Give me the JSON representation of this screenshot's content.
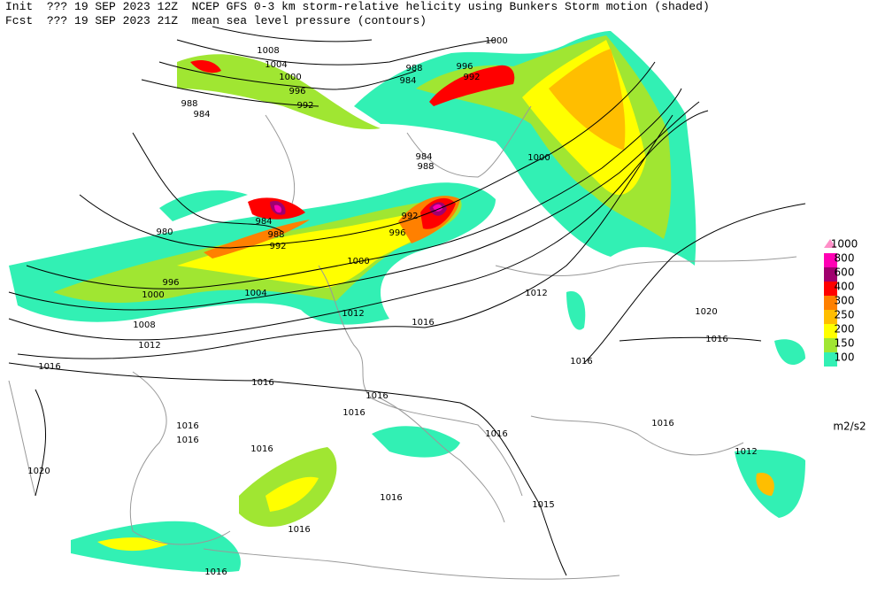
{
  "header": {
    "init_label": "Init",
    "init_time": "??? 19 SEP 2023 12Z",
    "title": "NCEP GFS 0-3 km storm-relative helicity using Bunkers Storm motion (shaded)",
    "fcst_label": "Fcst",
    "fcst_time": "??? 19 SEP 2023 21Z",
    "subtitle": "mean sea level pressure (contours)"
  },
  "legend": {
    "levels": [
      {
        "label": "1000",
        "color": "#ff8fc8"
      },
      {
        "label": "800",
        "color": "#ff00b4"
      },
      {
        "label": "600",
        "color": "#a0006e"
      },
      {
        "label": "400",
        "color": "#ff0000"
      },
      {
        "label": "300",
        "color": "#ff8000"
      },
      {
        "label": "250",
        "color": "#ffbe00"
      },
      {
        "label": "200",
        "color": "#ffff00"
      },
      {
        "label": "150",
        "color": "#a0e632"
      },
      {
        "label": "100",
        "color": "#32f0b4"
      }
    ],
    "unit": "m2/s2"
  },
  "isobar_labels": [
    "1008",
    "1004",
    "1000",
    "996",
    "992",
    "988",
    "984",
    "980",
    "984",
    "988",
    "992",
    "1000",
    "996",
    "1000",
    "1004",
    "1008",
    "1012",
    "1016",
    "1016",
    "1016",
    "1016",
    "1016",
    "1016",
    "1016",
    "1020",
    "1016",
    "1016",
    "1016",
    "1015",
    "1016",
    "1016",
    "1012",
    "1016",
    "1020",
    "1016",
    "1012",
    "1016",
    "1012",
    "1000",
    "988",
    "984",
    "992",
    "996",
    "992",
    "984",
    "988",
    "996",
    "1000"
  ]
}
